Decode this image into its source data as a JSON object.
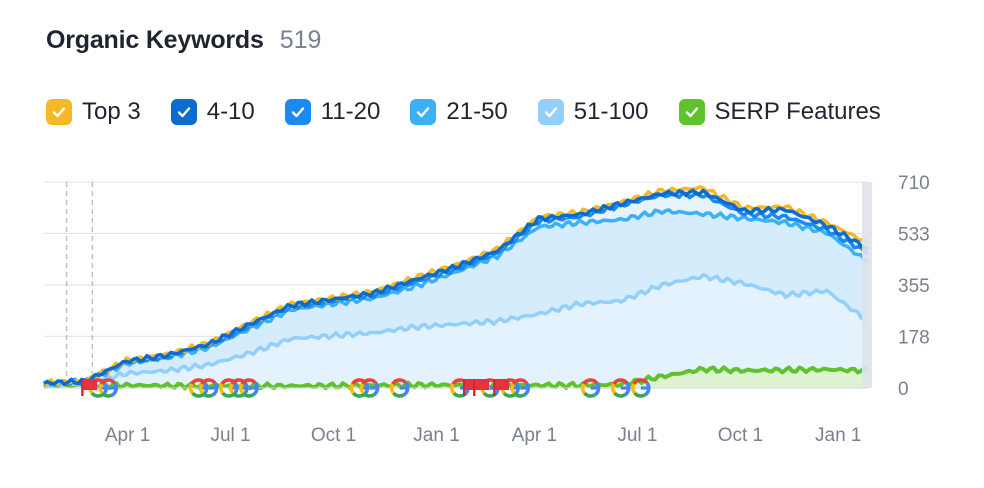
{
  "header": {
    "title": "Organic Keywords",
    "count": "519"
  },
  "legend": [
    {
      "label": "Top 3",
      "color": "#f5b928",
      "checked": true
    },
    {
      "label": "4-10",
      "color": "#0a6ccf",
      "checked": true
    },
    {
      "label": "11-20",
      "color": "#1a8af2",
      "checked": true
    },
    {
      "label": "21-50",
      "color": "#3bb0f7",
      "checked": true
    },
    {
      "label": "51-100",
      "color": "#93cffb",
      "checked": true
    },
    {
      "label": "SERP Features",
      "color": "#5fc22d",
      "checked": true
    }
  ],
  "chart_data": {
    "type": "area",
    "title": "Organic Keywords",
    "x_labels": [
      "Apr 1",
      "Jul 1",
      "Oct 1",
      "Jan 1",
      "Apr 1",
      "Jul 1",
      "Oct 1",
      "Jan 1"
    ],
    "y_ticks": [
      "710",
      "533",
      "355",
      "178",
      "0"
    ],
    "ylim": [
      0,
      710
    ],
    "grid": true,
    "legend_position": "top",
    "stacked": true,
    "x_index": [
      0,
      4,
      8,
      12,
      16,
      20,
      24,
      28,
      32,
      36,
      40,
      44,
      48,
      52,
      56,
      60,
      64,
      68,
      72,
      76,
      80
    ],
    "series": [
      {
        "name": "SERP Features",
        "color": "#5fc22d",
        "values": [
          10,
          10,
          9,
          8,
          8,
          7,
          7,
          8,
          9,
          10,
          10,
          9,
          9,
          10,
          12,
          40,
          65,
          60,
          62,
          64,
          60
        ]
      },
      {
        "name": "51-100",
        "color": "#93cffb",
        "values": [
          10,
          15,
          50,
          60,
          80,
          120,
          170,
          180,
          190,
          210,
          220,
          230,
          255,
          290,
          300,
          355,
          385,
          360,
          320,
          335,
          230
        ]
      },
      {
        "name": "21-50",
        "color": "#3bb0f7",
        "values": [
          15,
          20,
          85,
          105,
          140,
          205,
          270,
          290,
          310,
          350,
          400,
          455,
          555,
          570,
          580,
          610,
          600,
          585,
          570,
          535,
          435
        ]
      },
      {
        "name": "11-20",
        "color": "#1a8af2",
        "values": [
          16,
          22,
          90,
          110,
          148,
          215,
          280,
          300,
          320,
          365,
          410,
          465,
          575,
          590,
          630,
          665,
          665,
          600,
          590,
          545,
          465
        ]
      },
      {
        "name": "4-10",
        "color": "#0a6ccf",
        "values": [
          17,
          23,
          92,
          113,
          151,
          220,
          285,
          305,
          327,
          373,
          418,
          472,
          583,
          598,
          635,
          670,
          675,
          610,
          615,
          560,
          480
        ]
      },
      {
        "name": "Top 3",
        "color": "#f5b928",
        "values": [
          18,
          24,
          95,
          116,
          155,
          225,
          290,
          310,
          333,
          380,
          425,
          478,
          590,
          605,
          640,
          680,
          690,
          620,
          625,
          570,
          500
        ]
      }
    ]
  },
  "markers": {
    "google_positions": [
      4,
      5,
      14,
      15,
      17,
      18,
      19,
      30,
      31,
      34,
      40,
      43,
      45,
      46,
      53,
      56,
      58
    ],
    "flag_positions": [
      3,
      41,
      42,
      44
    ]
  }
}
